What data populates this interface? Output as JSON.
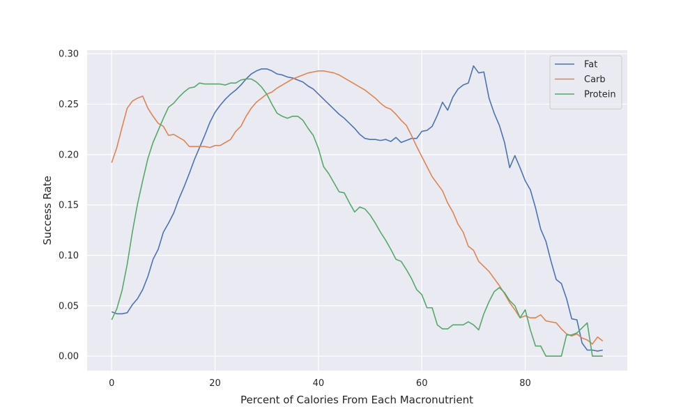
{
  "chart_data": {
    "type": "line",
    "title": "",
    "xlabel": "Percent of Calories From Each Macronutrient",
    "ylabel": "Success Rate",
    "xlim": [
      -4.75,
      99.75
    ],
    "ylim": [
      -0.0144,
      0.3036
    ],
    "xticks": [
      0,
      20,
      40,
      60,
      80
    ],
    "xtick_labels": [
      "0",
      "20",
      "40",
      "60",
      "80"
    ],
    "yticks": [
      0.0,
      0.05,
      0.1,
      0.15,
      0.2,
      0.25,
      0.3
    ],
    "ytick_labels": [
      "0.00",
      "0.05",
      "0.10",
      "0.15",
      "0.20",
      "0.25",
      "0.30"
    ],
    "grid": true,
    "legend_position": "top-right",
    "x_start": 0,
    "x_step": 1,
    "series": [
      {
        "name": "Fat",
        "color": "#4c72b0",
        "values": [
          0.044,
          0.042,
          0.042,
          0.043,
          0.051,
          0.057,
          0.066,
          0.079,
          0.096,
          0.106,
          0.123,
          0.132,
          0.142,
          0.156,
          0.168,
          0.181,
          0.195,
          0.207,
          0.219,
          0.232,
          0.242,
          0.249,
          0.255,
          0.26,
          0.264,
          0.269,
          0.275,
          0.28,
          0.283,
          0.285,
          0.285,
          0.283,
          0.28,
          0.279,
          0.277,
          0.276,
          0.274,
          0.272,
          0.268,
          0.265,
          0.26,
          0.255,
          0.25,
          0.245,
          0.24,
          0.236,
          0.231,
          0.226,
          0.22,
          0.216,
          0.215,
          0.215,
          0.214,
          0.215,
          0.213,
          0.217,
          0.212,
          0.214,
          0.216,
          0.216,
          0.223,
          0.224,
          0.228,
          0.239,
          0.252,
          0.244,
          0.257,
          0.265,
          0.269,
          0.271,
          0.288,
          0.281,
          0.282,
          0.256,
          0.241,
          0.229,
          0.212,
          0.187,
          0.199,
          0.187,
          0.174,
          0.165,
          0.147,
          0.126,
          0.114,
          0.094,
          0.076,
          0.072,
          0.057,
          0.037,
          0.036,
          0.013,
          0.006,
          0.006,
          0.005,
          0.006
        ]
      },
      {
        "name": "Carb",
        "color": "#dd8452",
        "values": [
          0.192,
          0.207,
          0.227,
          0.246,
          0.253,
          0.256,
          0.258,
          0.246,
          0.238,
          0.231,
          0.228,
          0.219,
          0.22,
          0.217,
          0.214,
          0.208,
          0.208,
          0.208,
          0.208,
          0.207,
          0.209,
          0.209,
          0.212,
          0.215,
          0.223,
          0.228,
          0.238,
          0.246,
          0.252,
          0.256,
          0.26,
          0.262,
          0.266,
          0.269,
          0.272,
          0.275,
          0.277,
          0.279,
          0.281,
          0.282,
          0.283,
          0.283,
          0.282,
          0.281,
          0.279,
          0.276,
          0.273,
          0.27,
          0.267,
          0.264,
          0.26,
          0.256,
          0.251,
          0.247,
          0.245,
          0.24,
          0.234,
          0.229,
          0.219,
          0.208,
          0.198,
          0.188,
          0.178,
          0.171,
          0.164,
          0.152,
          0.143,
          0.131,
          0.123,
          0.109,
          0.105,
          0.094,
          0.089,
          0.084,
          0.077,
          0.07,
          0.062,
          0.053,
          0.046,
          0.038,
          0.04,
          0.038,
          0.038,
          0.041,
          0.035,
          0.034,
          0.033,
          0.027,
          0.022,
          0.02,
          0.022,
          0.018,
          0.016,
          0.012,
          0.019,
          0.015
        ]
      },
      {
        "name": "Protein",
        "color": "#55a868",
        "values": [
          0.036,
          0.047,
          0.065,
          0.091,
          0.123,
          0.151,
          0.174,
          0.196,
          0.212,
          0.224,
          0.236,
          0.247,
          0.251,
          0.257,
          0.262,
          0.266,
          0.267,
          0.271,
          0.27,
          0.27,
          0.27,
          0.27,
          0.269,
          0.271,
          0.271,
          0.274,
          0.275,
          0.275,
          0.272,
          0.267,
          0.26,
          0.25,
          0.241,
          0.238,
          0.236,
          0.238,
          0.238,
          0.234,
          0.226,
          0.219,
          0.206,
          0.188,
          0.181,
          0.172,
          0.163,
          0.162,
          0.152,
          0.143,
          0.148,
          0.146,
          0.14,
          0.132,
          0.123,
          0.115,
          0.106,
          0.096,
          0.094,
          0.086,
          0.077,
          0.066,
          0.061,
          0.048,
          0.048,
          0.031,
          0.027,
          0.027,
          0.031,
          0.031,
          0.031,
          0.034,
          0.031,
          0.026,
          0.042,
          0.054,
          0.064,
          0.068,
          0.063,
          0.055,
          0.05,
          0.038,
          0.046,
          0.026,
          0.01,
          0.01,
          0.0,
          0.0,
          0.0,
          0.0,
          0.021,
          0.021,
          0.023,
          0.028,
          0.033,
          0.0,
          0.0,
          0.0
        ]
      }
    ]
  }
}
